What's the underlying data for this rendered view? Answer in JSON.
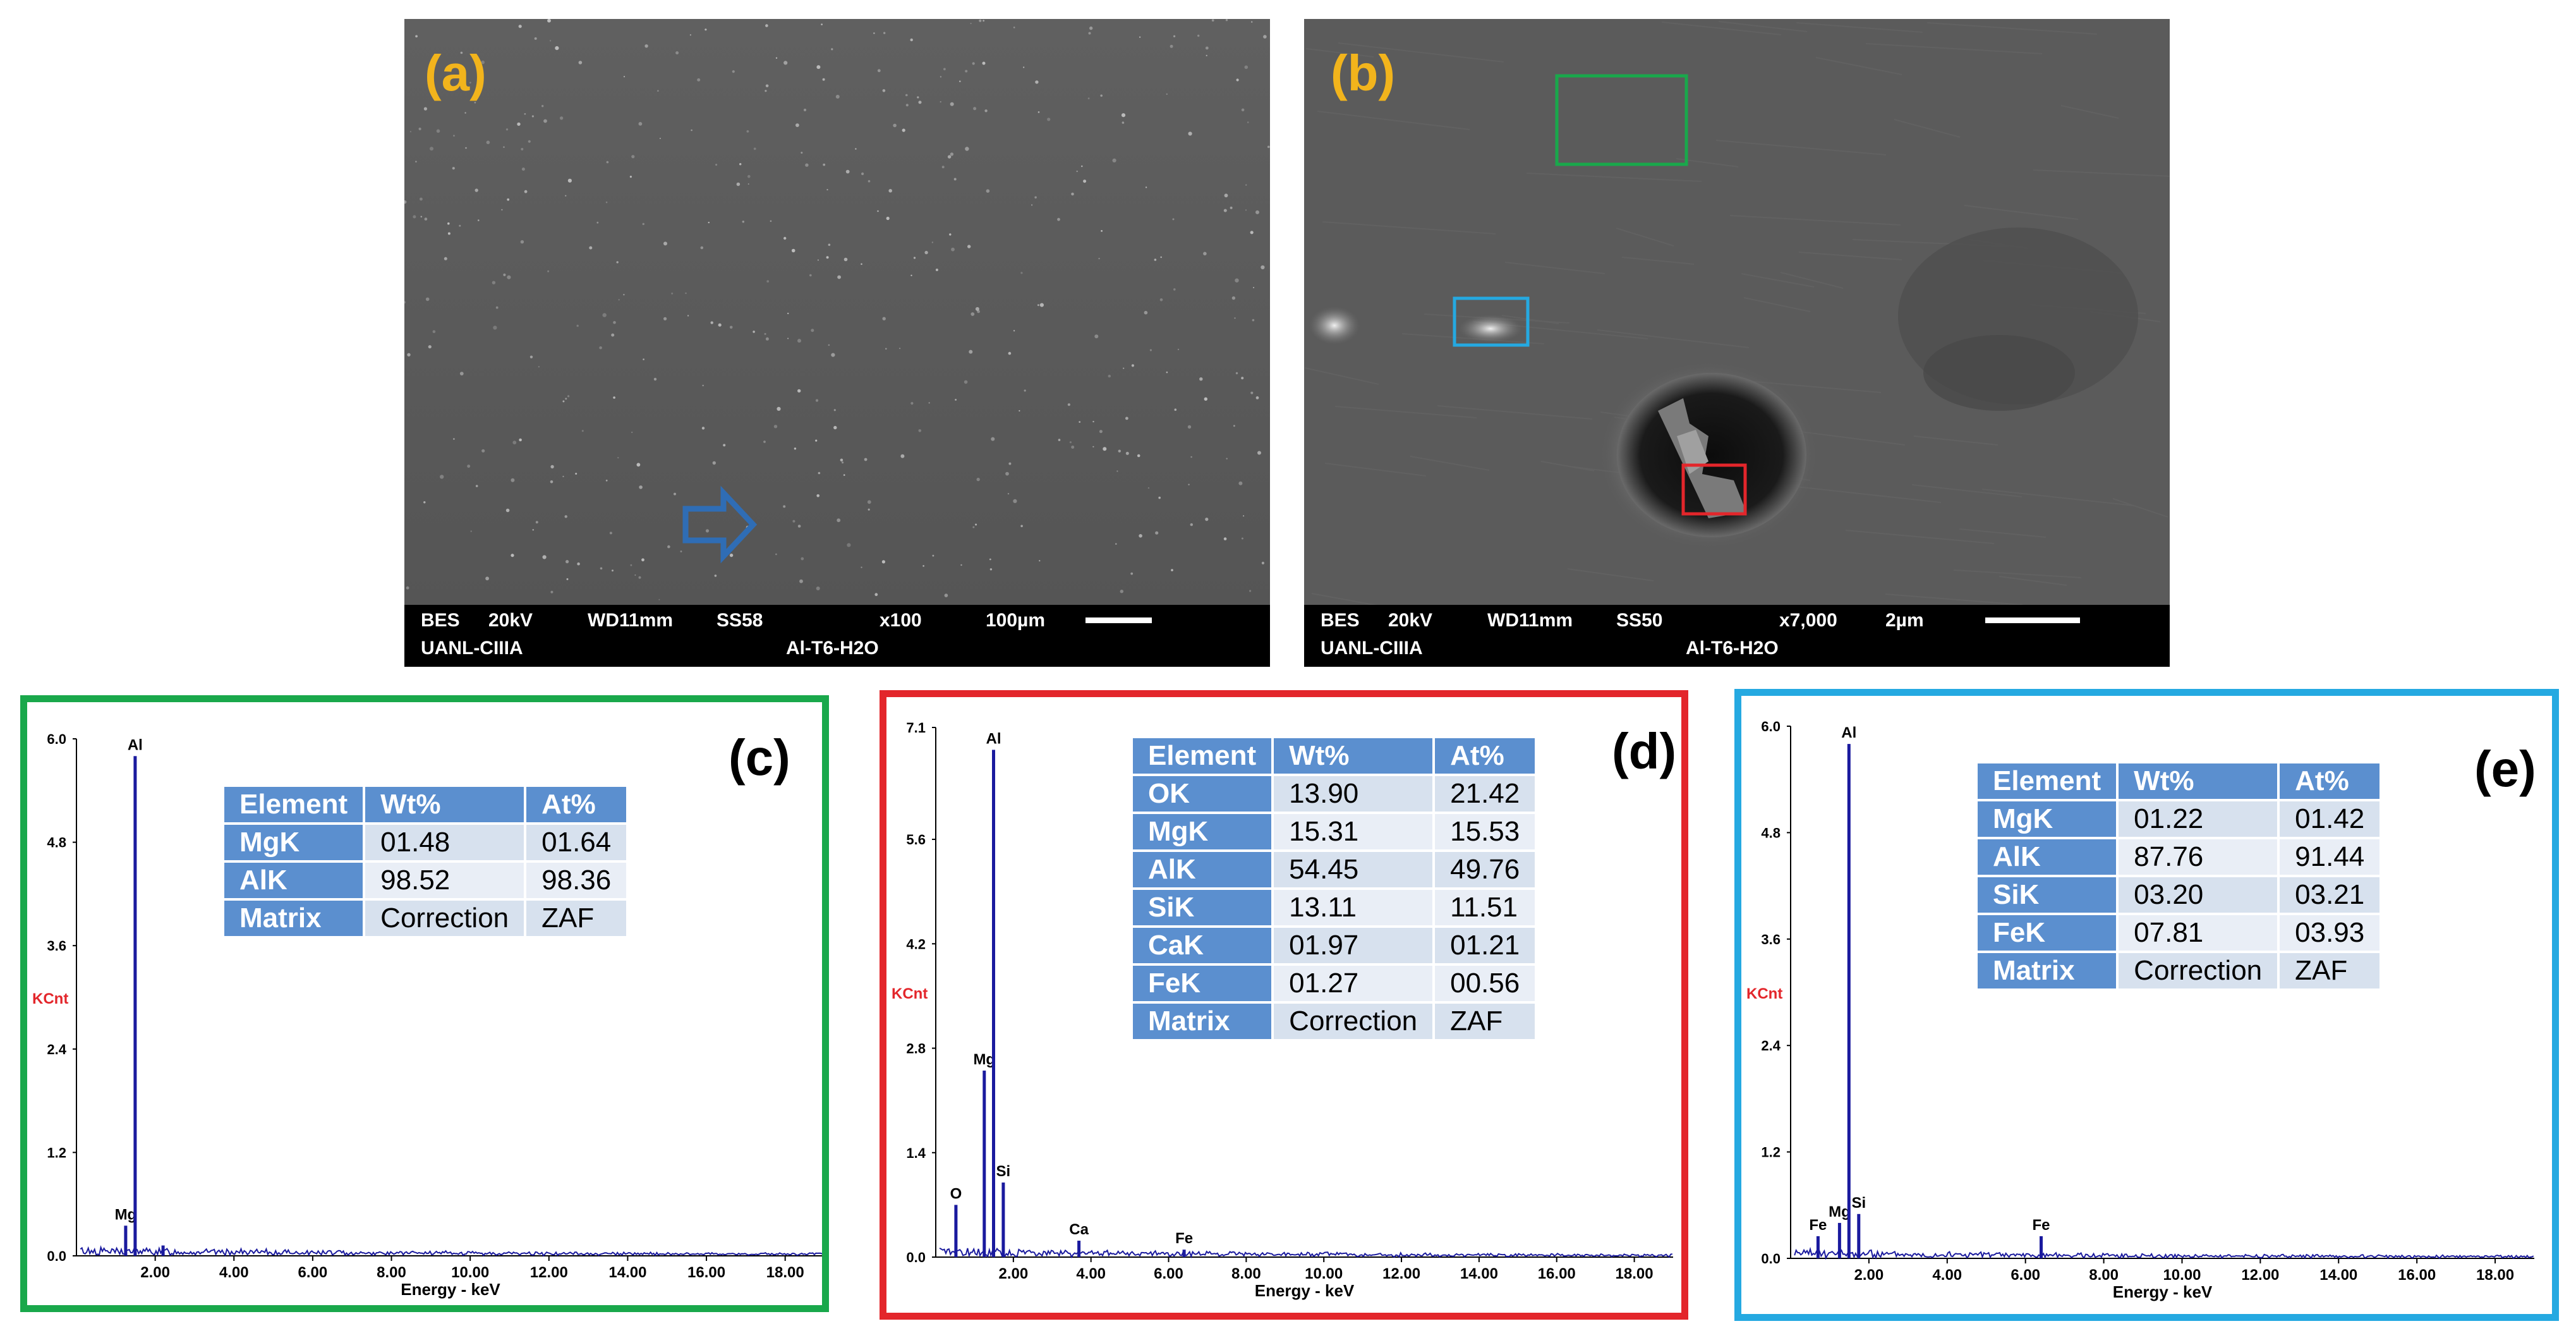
{
  "panels": {
    "a": {
      "letter": "(a)"
    },
    "b": {
      "letter": "(b)"
    },
    "c": {
      "letter": "(c)"
    },
    "d": {
      "letter": "(d)"
    },
    "e": {
      "letter": "(e)"
    }
  },
  "sem_a": {
    "info": {
      "mode": "BES",
      "kv": "20kV",
      "wd": "WD11mm",
      "ss": "SS58",
      "mag": "x100",
      "scale": "100µm",
      "lab": "UANL-CIIIA",
      "sample": "Al-T6-H2O"
    }
  },
  "sem_b": {
    "info": {
      "mode": "BES",
      "kv": "20kV",
      "wd": "WD11mm",
      "ss": "SS50",
      "mag": "x7,000",
      "scale": "2µm",
      "lab": "UANL-CIIIA",
      "sample": "Al-T6-H2O"
    }
  },
  "colors": {
    "green": "#19a84b",
    "red": "#e3262b",
    "cyan": "#25a9e1",
    "label_yellow": "#f2b41c",
    "spectrum": "#1a1a9e",
    "table_header": "#5b8fcf"
  },
  "tables": {
    "c": {
      "headers": [
        "Element",
        "Wt%",
        "At%"
      ],
      "rows": [
        [
          "MgK",
          "01.48",
          "01.64"
        ],
        [
          "AlK",
          "98.52",
          "98.36"
        ],
        [
          "Matrix",
          "Correction",
          "ZAF"
        ]
      ]
    },
    "d": {
      "headers": [
        "Element",
        "Wt%",
        "At%"
      ],
      "rows": [
        [
          "OK",
          "13.90",
          "21.42"
        ],
        [
          "MgK",
          "15.31",
          "15.53"
        ],
        [
          "AlK",
          "54.45",
          "49.76"
        ],
        [
          "SiK",
          "13.11",
          "11.51"
        ],
        [
          "CaK",
          "01.97",
          "01.21"
        ],
        [
          "FeK",
          "01.27",
          "00.56"
        ],
        [
          "Matrix",
          "Correction",
          "ZAF"
        ]
      ]
    },
    "e": {
      "headers": [
        "Element",
        "Wt%",
        "At%"
      ],
      "rows": [
        [
          "MgK",
          "01.22",
          "01.42"
        ],
        [
          "AlK",
          "87.76",
          "91.44"
        ],
        [
          "SiK",
          "03.20",
          "03.21"
        ],
        [
          "FeK",
          "07.81",
          "03.93"
        ],
        [
          "Matrix",
          "Correction",
          "ZAF"
        ]
      ]
    }
  },
  "chart_data": [
    {
      "type": "line",
      "panel": "(c)",
      "xlabel": "Energy - keV",
      "ylabel": "KCnt",
      "xlim": [
        0,
        19
      ],
      "ylim": [
        0,
        6.0
      ],
      "x_ticks": [
        "2.00",
        "4.00",
        "6.00",
        "8.00",
        "10.00",
        "12.00",
        "14.00",
        "16.00",
        "18.00"
      ],
      "y_ticks": [
        "0.0",
        "1.2",
        "2.4",
        "3.6",
        "4.8",
        "6.0"
      ],
      "peaks": [
        {
          "x": 1.25,
          "y": 0.35,
          "label": "Mg"
        },
        {
          "x": 1.49,
          "y": 5.8,
          "label": "Al"
        },
        {
          "x": 2.2,
          "y": 0.12,
          "label": ""
        }
      ]
    },
    {
      "type": "line",
      "panel": "(d)",
      "xlabel": "Energy - keV",
      "ylabel": "KCnt",
      "xlim": [
        0,
        19
      ],
      "ylim": [
        0,
        7.1
      ],
      "x_ticks": [
        "2.00",
        "4.00",
        "6.00",
        "8.00",
        "10.00",
        "12.00",
        "14.00",
        "16.00",
        "18.00"
      ],
      "y_ticks": [
        "0.0",
        "1.4",
        "2.8",
        "4.2",
        "5.6",
        "7.1"
      ],
      "peaks": [
        {
          "x": 0.52,
          "y": 0.7,
          "label": "O"
        },
        {
          "x": 1.25,
          "y": 2.5,
          "label": "Mg"
        },
        {
          "x": 1.49,
          "y": 6.8,
          "label": "Al"
        },
        {
          "x": 1.74,
          "y": 1.0,
          "label": "Si"
        },
        {
          "x": 3.69,
          "y": 0.22,
          "label": "Ca"
        },
        {
          "x": 6.4,
          "y": 0.1,
          "label": "Fe"
        }
      ]
    },
    {
      "type": "line",
      "panel": "(e)",
      "xlabel": "Energy - keV",
      "ylabel": "KCnt",
      "xlim": [
        0,
        19
      ],
      "ylim": [
        0,
        6.0
      ],
      "x_ticks": [
        "2.00",
        "4.00",
        "6.00",
        "8.00",
        "10.00",
        "12.00",
        "14.00",
        "16.00",
        "18.00"
      ],
      "y_ticks": [
        "0.0",
        "1.2",
        "2.4",
        "3.6",
        "4.8",
        "6.0"
      ],
      "peaks": [
        {
          "x": 0.7,
          "y": 0.25,
          "label": "Fe"
        },
        {
          "x": 1.25,
          "y": 0.4,
          "label": "Mg"
        },
        {
          "x": 1.49,
          "y": 5.8,
          "label": "Al"
        },
        {
          "x": 1.74,
          "y": 0.5,
          "label": "Si"
        },
        {
          "x": 6.4,
          "y": 0.25,
          "label": "Fe"
        }
      ]
    }
  ]
}
